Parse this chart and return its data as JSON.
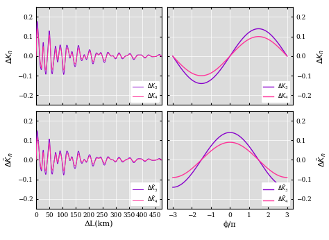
{
  "background_color": "#dcdcdc",
  "grid_color": "#ffffff",
  "ylim": [
    -0.25,
    0.25
  ],
  "yticks": [
    -0.2,
    -0.1,
    0,
    0.1,
    0.2
  ],
  "xlim_left": [
    0,
    475
  ],
  "xticks_left": [
    0,
    50,
    100,
    150,
    200,
    250,
    300,
    350,
    400,
    450
  ],
  "xlim_right": [
    -3.3,
    3.3
  ],
  "xticks_right": [
    -3,
    -2,
    -1,
    0,
    1,
    2,
    3
  ],
  "xlabel_left": "ΔL(km)",
  "xlabel_right": "ϕ/π",
  "color_K3": "#ff3399",
  "color_K4": "#8800cc"
}
